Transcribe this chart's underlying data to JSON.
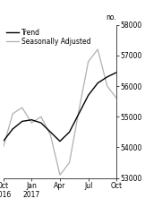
{
  "x_labels": [
    "Oct\n2016",
    "Jan\n2017",
    "Apr",
    "Jul",
    "Oct"
  ],
  "x_ticks": [
    0,
    3,
    6,
    9,
    12
  ],
  "trend_x": [
    0,
    1,
    2,
    3,
    4,
    5,
    6,
    7,
    8,
    9,
    10,
    11,
    12
  ],
  "trend_y": [
    54200,
    54600,
    54850,
    54900,
    54800,
    54500,
    54200,
    54500,
    55100,
    55700,
    56100,
    56300,
    56450
  ],
  "seasonal_x": [
    0,
    1,
    2,
    3,
    4,
    5,
    6,
    7,
    8,
    9,
    10,
    11,
    12
  ],
  "seasonal_y": [
    54000,
    55100,
    55300,
    54800,
    55000,
    54400,
    53100,
    53500,
    55200,
    56800,
    57200,
    56000,
    55600
  ],
  "ylim": [
    53000,
    58000
  ],
  "yticks": [
    53000,
    54000,
    55000,
    56000,
    57000,
    58000
  ],
  "ylabel": "no.",
  "trend_color": "#000000",
  "seasonal_color": "#b0b0b0",
  "trend_label": "Trend",
  "seasonal_label": "Seasonally Adjusted",
  "trend_linewidth": 1.0,
  "seasonal_linewidth": 0.9,
  "background_color": "#ffffff",
  "legend_fontsize": 5.5,
  "tick_fontsize": 5.5,
  "ylabel_fontsize": 5.5
}
